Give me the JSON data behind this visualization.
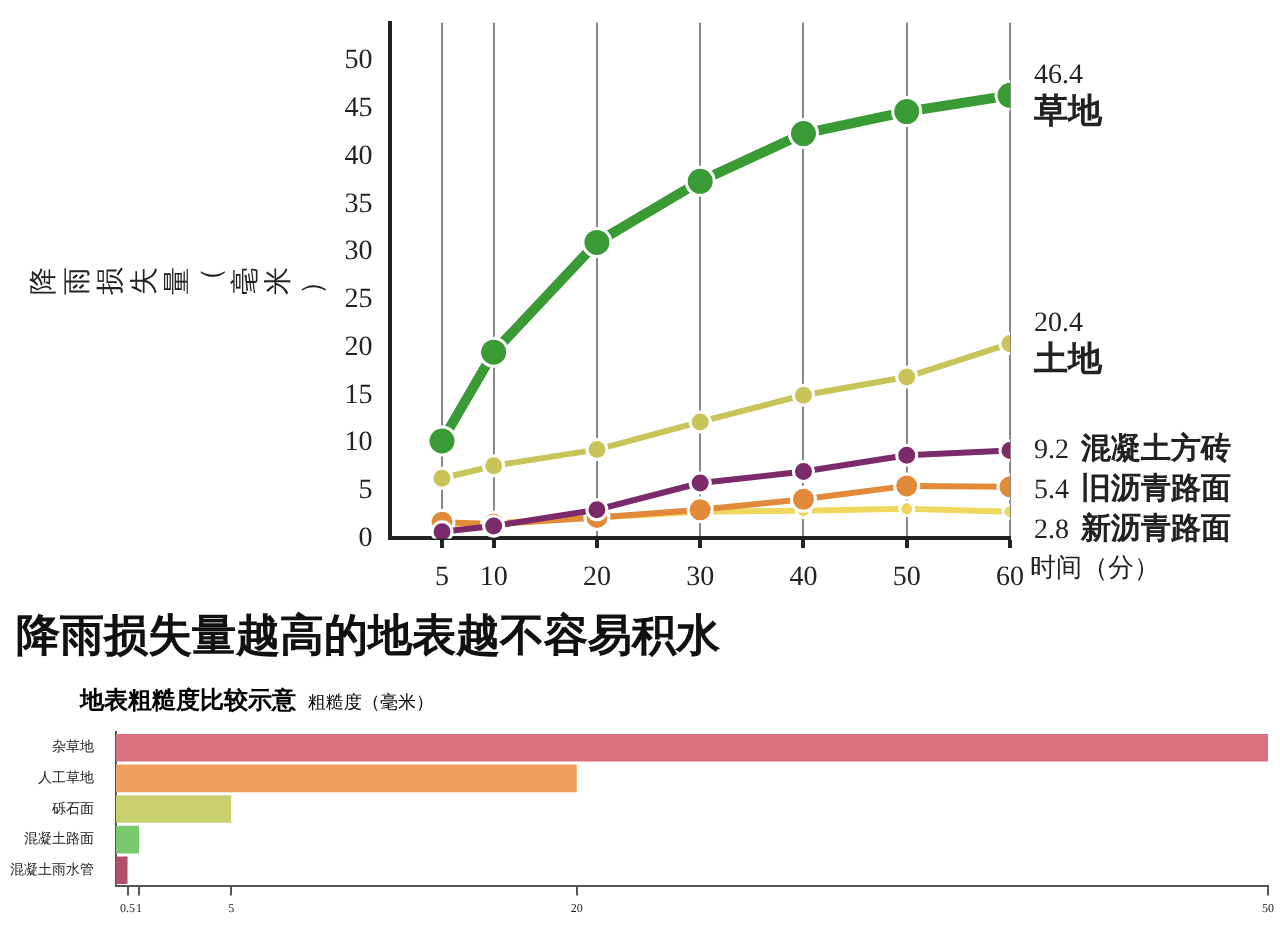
{
  "chart_data": [
    {
      "type": "line",
      "title": "降雨损失量越高的地表越不容易积水",
      "ylabel": "降雨损失量（毫米）",
      "xlabel": "时间（分）",
      "x": [
        5,
        10,
        20,
        30,
        40,
        50,
        60
      ],
      "xlim": [
        0,
        60
      ],
      "xticks": [
        5,
        10,
        20,
        30,
        40,
        50,
        60
      ],
      "ylim": [
        0,
        54
      ],
      "yticks": [
        0,
        5,
        10,
        15,
        20,
        25,
        30,
        35,
        40,
        45,
        50
      ],
      "grid": "x",
      "legend": false,
      "marker": "circle",
      "series": [
        {
          "name": "草地",
          "color": "#3a9a35",
          "values": [
            10.2,
            19.5,
            31.0,
            37.4,
            42.4,
            44.7,
            46.4
          ],
          "value_labels": [
            null,
            null,
            null,
            null,
            null,
            null,
            "46.4"
          ]
        },
        {
          "name": "土地",
          "color": "#c8c45a",
          "values": [
            6.3,
            7.6,
            9.3,
            12.2,
            15.0,
            16.9,
            20.4
          ],
          "value_labels": [
            null,
            null,
            null,
            null,
            null,
            null,
            "20.4"
          ]
        },
        {
          "name": "混凝土方砖",
          "color": "#7b2a6a",
          "values": [
            0.7,
            1.3,
            3.0,
            5.8,
            7.0,
            8.7,
            9.2
          ],
          "value_labels": [
            null,
            null,
            null,
            null,
            null,
            null,
            "9.2"
          ]
        },
        {
          "name": "旧沥青路面",
          "color": "#e08a3a",
          "values": [
            1.7,
            1.5,
            2.2,
            3.0,
            4.1,
            5.5,
            5.4
          ],
          "value_labels": [
            null,
            null,
            null,
            null,
            null,
            null,
            "5.4"
          ]
        },
        {
          "name": "新沥青路面",
          "color": "#f0d860",
          "values": [
            1.3,
            1.6,
            2.2,
            2.8,
            2.9,
            3.1,
            2.8
          ],
          "value_labels": [
            null,
            null,
            null,
            null,
            null,
            null,
            "2.8"
          ]
        }
      ]
    },
    {
      "type": "bar",
      "orientation": "horizontal",
      "title": "地表粗糙度比较示意",
      "xlabel": "粗糙度（毫米）",
      "categories": [
        "杂草地",
        "人工草地",
        "砾石面",
        "混凝土路面",
        "混凝土雨水管"
      ],
      "values": [
        50,
        20,
        5,
        1,
        0.5
      ],
      "colors": [
        "#d9707e",
        "#eea060",
        "#c8d070",
        "#7cc870",
        "#b0506a"
      ],
      "xlim": [
        0,
        50
      ],
      "xticks": [
        0.5,
        1,
        5,
        20,
        50
      ],
      "grid": false,
      "legend": false
    }
  ]
}
